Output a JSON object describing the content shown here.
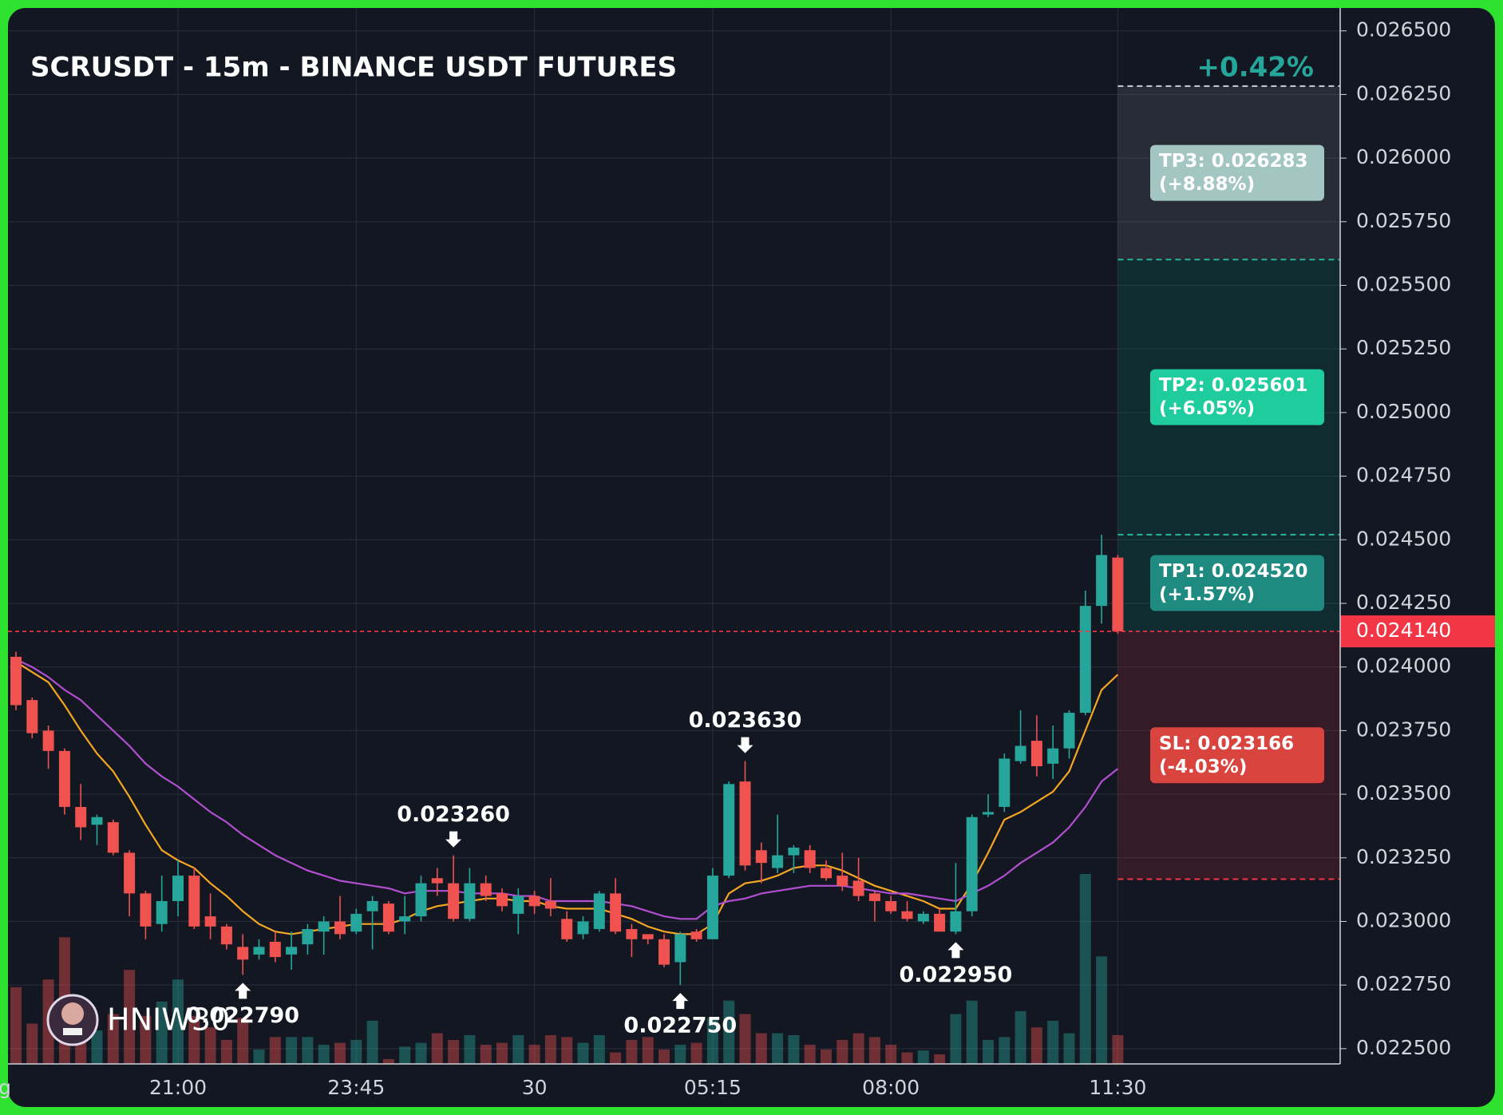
{
  "chart_data": {
    "type": "candlestick",
    "title": "SCRUSDT - 15m - BINANCE USDT FUTURES",
    "change_label": "+0.42%",
    "watermark": "HNIW30",
    "categories": [
      "g",
      null,
      null,
      null,
      null,
      null,
      null,
      null,
      null,
      null,
      "21:00",
      null,
      null,
      null,
      null,
      null,
      null,
      null,
      null,
      null,
      null,
      "23:45",
      null,
      null,
      null,
      null,
      null,
      null,
      null,
      null,
      null,
      null,
      "30",
      null,
      null,
      null,
      null,
      null,
      null,
      null,
      null,
      null,
      null,
      "05:15",
      null,
      null,
      null,
      null,
      null,
      null,
      null,
      null,
      null,
      null,
      "08:00",
      null,
      null,
      null,
      null,
      null,
      null,
      null,
      null,
      null,
      null,
      null,
      null,
      null,
      "11:30"
    ],
    "open": [
      0.02404,
      0.02387,
      0.02375,
      0.02367,
      0.02345,
      0.02338,
      0.02339,
      0.02327,
      0.02311,
      0.02299,
      0.02308,
      0.02318,
      0.02302,
      0.02298,
      0.0229,
      0.02287,
      0.02292,
      0.02287,
      0.02291,
      0.02296,
      0.023,
      0.02296,
      0.02304,
      0.02307,
      0.023,
      0.02302,
      0.02317,
      0.02315,
      0.02301,
      0.02315,
      0.02311,
      0.02303,
      0.0231,
      0.02308,
      0.02301,
      0.02295,
      0.02297,
      0.02311,
      0.02297,
      0.02295,
      0.02293,
      0.02284,
      0.02296,
      0.02293,
      0.02318,
      0.02355,
      0.02328,
      0.02321,
      0.02326,
      0.02328,
      0.02321,
      0.02318,
      0.02316,
      0.02311,
      0.02308,
      0.02304,
      0.023,
      0.02303,
      0.02296,
      0.02304,
      0.02342,
      0.02345,
      0.02363,
      0.02371,
      0.02362,
      0.02368,
      0.02382,
      0.02424,
      0.02443
    ],
    "high": [
      0.02406,
      0.02388,
      0.02377,
      0.02368,
      0.02354,
      0.02342,
      0.0234,
      0.02328,
      0.02312,
      0.02318,
      0.02324,
      0.02321,
      0.02311,
      0.02299,
      0.02295,
      0.02293,
      0.02296,
      0.02296,
      0.02299,
      0.02302,
      0.0231,
      0.02305,
      0.0231,
      0.02308,
      0.0231,
      0.02318,
      0.02321,
      0.02326,
      0.02321,
      0.02318,
      0.02313,
      0.02313,
      0.02312,
      0.02317,
      0.02304,
      0.02302,
      0.02312,
      0.02317,
      0.02299,
      0.02295,
      0.02295,
      0.02296,
      0.02297,
      0.02321,
      0.02355,
      0.02363,
      0.02331,
      0.02342,
      0.0233,
      0.0233,
      0.02324,
      0.02327,
      0.02325,
      0.02312,
      0.0231,
      0.02308,
      0.02304,
      0.02305,
      0.02323,
      0.02342,
      0.0235,
      0.02366,
      0.02383,
      0.02381,
      0.02377,
      0.02383,
      0.0243,
      0.02452,
      0.02444
    ],
    "low": [
      0.02383,
      0.02372,
      0.0236,
      0.02342,
      0.02332,
      0.0233,
      0.02326,
      0.02302,
      0.02293,
      0.02296,
      0.02302,
      0.02297,
      0.02293,
      0.02289,
      0.02279,
      0.02285,
      0.02284,
      0.02281,
      0.02287,
      0.02287,
      0.02293,
      0.02295,
      0.02289,
      0.02295,
      0.02295,
      0.023,
      0.0231,
      0.023,
      0.023,
      0.02308,
      0.02304,
      0.02295,
      0.02303,
      0.02302,
      0.02292,
      0.02293,
      0.02296,
      0.02295,
      0.02286,
      0.02291,
      0.02282,
      0.02275,
      0.02292,
      0.02293,
      0.02317,
      0.0232,
      0.02315,
      0.02319,
      0.02319,
      0.02319,
      0.02316,
      0.02312,
      0.02308,
      0.023,
      0.02303,
      0.023,
      0.02299,
      0.02296,
      0.02295,
      0.02302,
      0.02341,
      0.02343,
      0.02362,
      0.02357,
      0.02356,
      0.02364,
      0.02381,
      0.02417,
      0.02413
    ],
    "close": [
      0.02385,
      0.02374,
      0.02367,
      0.02345,
      0.02337,
      0.02341,
      0.02327,
      0.02311,
      0.02298,
      0.02308,
      0.02318,
      0.02298,
      0.02298,
      0.02291,
      0.02285,
      0.0229,
      0.02286,
      0.0229,
      0.02297,
      0.023,
      0.02295,
      0.02303,
      0.02308,
      0.02296,
      0.02302,
      0.02315,
      0.02315,
      0.02301,
      0.02315,
      0.0231,
      0.02306,
      0.0231,
      0.02306,
      0.02305,
      0.02293,
      0.023,
      0.02311,
      0.02296,
      0.02293,
      0.02293,
      0.02283,
      0.02295,
      0.02293,
      0.02318,
      0.02354,
      0.02322,
      0.02323,
      0.02326,
      0.02329,
      0.02321,
      0.02317,
      0.02314,
      0.0231,
      0.02308,
      0.02304,
      0.02301,
      0.02303,
      0.02296,
      0.02304,
      0.02341,
      0.02343,
      0.02364,
      0.02369,
      0.02361,
      0.02368,
      0.02382,
      0.02424,
      0.02444,
      0.02414
    ],
    "volume": [
      80,
      42,
      88,
      132,
      50,
      35,
      52,
      98,
      50,
      65,
      88,
      50,
      38,
      25,
      48,
      15,
      28,
      28,
      28,
      20,
      22,
      25,
      45,
      5,
      18,
      22,
      32,
      25,
      30,
      20,
      22,
      30,
      20,
      30,
      28,
      22,
      30,
      12,
      25,
      28,
      15,
      20,
      22,
      48,
      66,
      52,
      32,
      32,
      30,
      20,
      15,
      25,
      32,
      28,
      20,
      12,
      14,
      10,
      52,
      66,
      25,
      28,
      55,
      38,
      45,
      32,
      198,
      112,
      30
    ],
    "up_color": "#26a69a",
    "down_color": "#f0524f",
    "moving_averages": [
      {
        "color": "#f5a623",
        "values": [
          0.02402,
          0.02398,
          0.02394,
          0.02385,
          0.02375,
          0.02366,
          0.02359,
          0.02349,
          0.02338,
          0.02328,
          0.02324,
          0.02321,
          0.02315,
          0.0231,
          0.02304,
          0.02299,
          0.02296,
          0.02295,
          0.02296,
          0.02297,
          0.02298,
          0.02299,
          0.02299,
          0.02299,
          0.02301,
          0.02304,
          0.02306,
          0.02307,
          0.02308,
          0.02309,
          0.02309,
          0.02308,
          0.02308,
          0.02306,
          0.02305,
          0.02305,
          0.02305,
          0.02303,
          0.02301,
          0.02298,
          0.02296,
          0.02295,
          0.02295,
          0.02299,
          0.02311,
          0.02315,
          0.02316,
          0.02318,
          0.02321,
          0.02322,
          0.02322,
          0.0232,
          0.02317,
          0.02314,
          0.02312,
          0.0231,
          0.02308,
          0.02305,
          0.02305,
          0.02315,
          0.02327,
          0.0234,
          0.02343,
          0.02347,
          0.02351,
          0.02359,
          0.02375,
          0.02391,
          0.02397
        ]
      },
      {
        "color": "#b14fd0",
        "values": [
          0.02403,
          0.024,
          0.02396,
          0.02391,
          0.02387,
          0.02381,
          0.02375,
          0.02369,
          0.02362,
          0.02357,
          0.02353,
          0.02348,
          0.02343,
          0.02339,
          0.02334,
          0.0233,
          0.02326,
          0.02323,
          0.0232,
          0.02318,
          0.02316,
          0.02315,
          0.02314,
          0.02313,
          0.02311,
          0.02312,
          0.02312,
          0.02312,
          0.02311,
          0.02311,
          0.02311,
          0.0231,
          0.0231,
          0.02308,
          0.02308,
          0.02308,
          0.02308,
          0.02307,
          0.02306,
          0.02304,
          0.02302,
          0.02301,
          0.02301,
          0.02306,
          0.02308,
          0.02309,
          0.02311,
          0.02312,
          0.02313,
          0.02314,
          0.02314,
          0.02314,
          0.02313,
          0.02312,
          0.02311,
          0.02311,
          0.0231,
          0.02309,
          0.02308,
          0.02311,
          0.02314,
          0.02318,
          0.02323,
          0.02327,
          0.02331,
          0.02337,
          0.02345,
          0.02355,
          0.0236
        ]
      }
    ],
    "ylim": [
      0.02244,
      0.02659
    ],
    "yticks": [
      {
        "value": 0.0225,
        "label": "0.022500"
      },
      {
        "value": 0.02275,
        "label": "0.022750"
      },
      {
        "value": 0.023,
        "label": "0.023000"
      },
      {
        "value": 0.02325,
        "label": "0.023250"
      },
      {
        "value": 0.0235,
        "label": "0.023500"
      },
      {
        "value": 0.02375,
        "label": "0.023750"
      },
      {
        "value": 0.024,
        "label": "0.024000"
      },
      {
        "value": 0.02425,
        "label": "0.024250"
      },
      {
        "value": 0.0245,
        "label": "0.024500"
      },
      {
        "value": 0.02475,
        "label": "0.024750"
      },
      {
        "value": 0.025,
        "label": "0.025000"
      },
      {
        "value": 0.02525,
        "label": "0.025250"
      },
      {
        "value": 0.0255,
        "label": "0.025500"
      },
      {
        "value": 0.02575,
        "label": "0.025750"
      },
      {
        "value": 0.026,
        "label": "0.026000"
      },
      {
        "value": 0.02625,
        "label": "0.026250"
      },
      {
        "value": 0.0265,
        "label": "0.026500"
      }
    ],
    "grid": true,
    "last_price": {
      "value": 0.02414,
      "label": "0.024140",
      "color": "#f23645"
    },
    "levels": [
      {
        "value": 0.026283,
        "label": "TP3: 0.026283",
        "change": "(+8.88%)",
        "color": "#a3c6c3",
        "line_color": "#c9cdd6",
        "zone_color": "rgba(120,123,134,0.22)"
      },
      {
        "value": 0.025601,
        "label": "TP2: 0.025601",
        "change": "(+6.05%)",
        "color": "#1fcc9e",
        "line_color": "#26b39a",
        "zone_color": "rgba(8,153,129,0.16)"
      },
      {
        "value": 0.02452,
        "label": "TP1: 0.024520",
        "change": "(+1.57%)",
        "color": "#1f8a80",
        "line_color": "#26b39a",
        "zone_color": "rgba(8,153,129,0.16)"
      },
      {
        "value": 0.023166,
        "label": "SL: 0.023166",
        "change": "(-4.03%)",
        "color": "#d9443f",
        "line_color": "#f23645",
        "zone_color": "rgba(242,54,69,0.15)"
      }
    ],
    "annotations": [
      {
        "value": 0.02279,
        "label": "0.022790"
      },
      {
        "value": 0.02326,
        "label": "0.023260"
      },
      {
        "value": 0.02275,
        "label": "0.022750"
      },
      {
        "value": 0.02363,
        "label": "0.023630"
      },
      {
        "value": 0.02295,
        "label": "0.022950"
      }
    ]
  }
}
